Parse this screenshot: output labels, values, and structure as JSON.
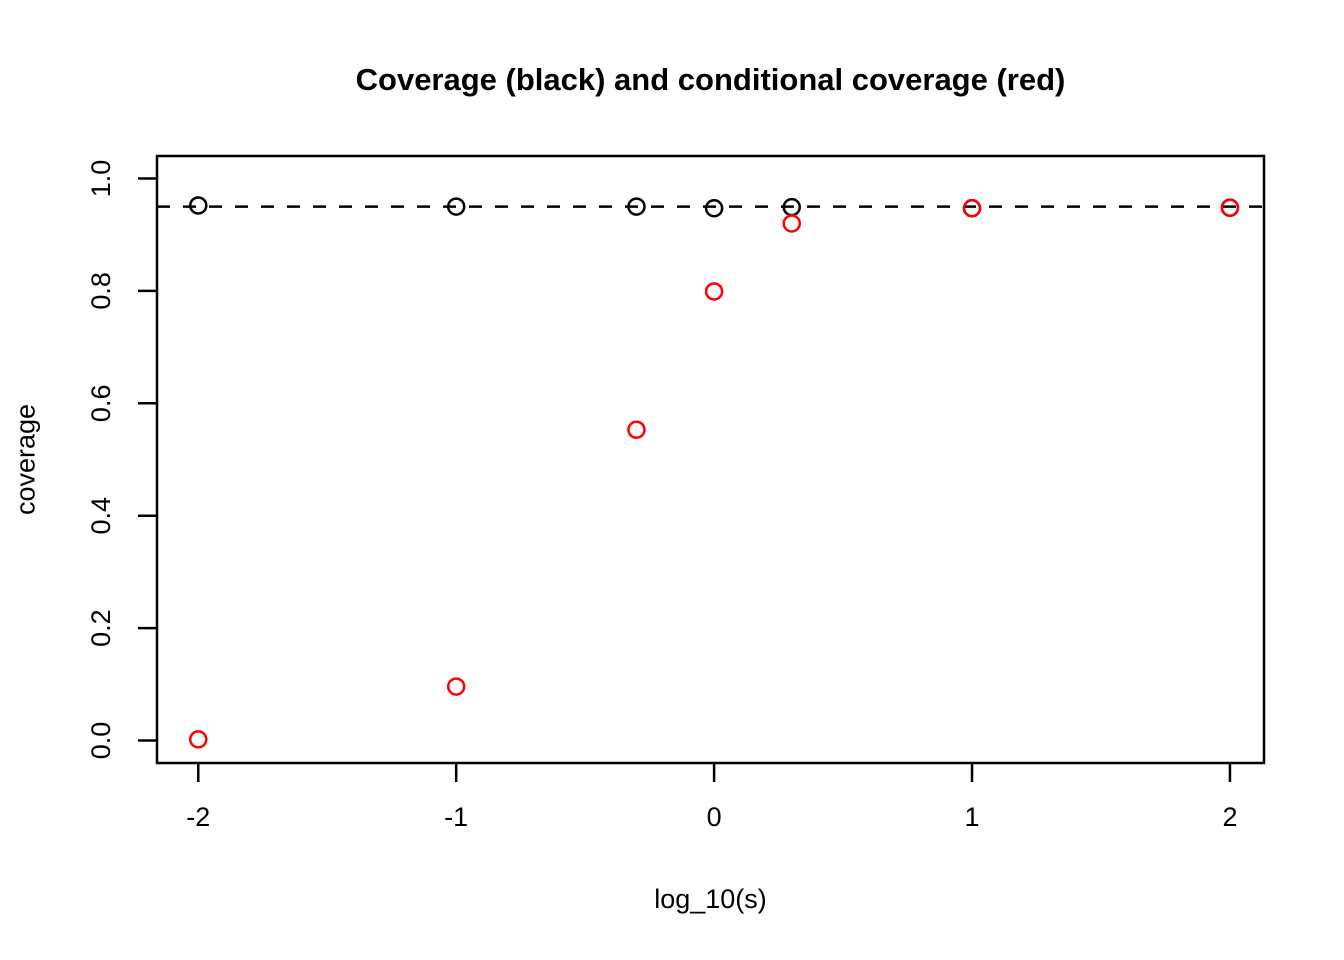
{
  "chart_data": {
    "type": "scatter",
    "title": "Coverage (black) and conditional coverage (red)",
    "xlabel": "log_10(s)",
    "ylabel": "coverage",
    "xlim": [
      -2.16,
      2.132
    ],
    "ylim": [
      -0.04,
      1.04
    ],
    "x_ticks": [
      -2,
      -1,
      0,
      1,
      2
    ],
    "x_tick_labels": [
      "-2",
      "-1",
      "0",
      "1",
      "2"
    ],
    "y_ticks": [
      0.0,
      0.2,
      0.4,
      0.6,
      0.8,
      1.0
    ],
    "y_tick_labels": [
      "0.0",
      "0.2",
      "0.4",
      "0.6",
      "0.8",
      "1.0"
    ],
    "grid": false,
    "legend": "none",
    "reference_line": {
      "y": 0.95,
      "style": "dashed",
      "color": "#000000"
    },
    "marker": "open-circle",
    "series": [
      {
        "name": "coverage",
        "color": "#000000",
        "x": [
          -2,
          -1,
          -0.301,
          0,
          0.301,
          1,
          2
        ],
        "y": [
          0.952,
          0.95,
          0.95,
          0.947,
          0.949,
          0.947,
          0.948
        ]
      },
      {
        "name": "conditional coverage",
        "color": "#FF0000",
        "x": [
          -2,
          -1,
          -0.301,
          0,
          0.301,
          1,
          2
        ],
        "y": [
          0.002,
          0.096,
          0.553,
          0.799,
          0.92,
          0.947,
          0.948
        ]
      }
    ]
  }
}
